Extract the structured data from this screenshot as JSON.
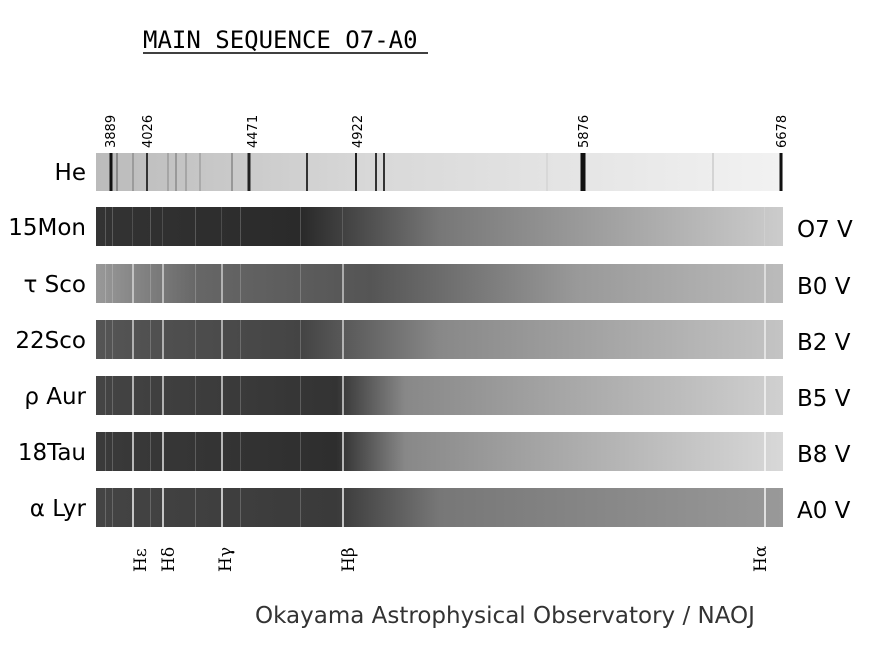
{
  "title": "MAIN SEQUENCE O7-A0",
  "wavelengths": [
    "3889",
    "4026",
    "4471",
    "4922",
    "5876",
    "6678"
  ],
  "reference": {
    "label": "He"
  },
  "stars": [
    {
      "name": "15Mon",
      "type": "O7 V"
    },
    {
      "name": "τ Sco",
      "type": "B0 V"
    },
    {
      "name": "22Sco",
      "type": "B2 V"
    },
    {
      "name": "ρ Aur",
      "type": "B5 V"
    },
    {
      "name": "18Tau",
      "type": "B8 V"
    },
    {
      "name": "α Lyr",
      "type": "A0 V"
    }
  ],
  "hydrogen_lines": [
    "Hε",
    "Hδ",
    "Hγ",
    "Hβ",
    "Hα"
  ],
  "credit": "Okayama Astrophysical Observatory / NAOJ"
}
